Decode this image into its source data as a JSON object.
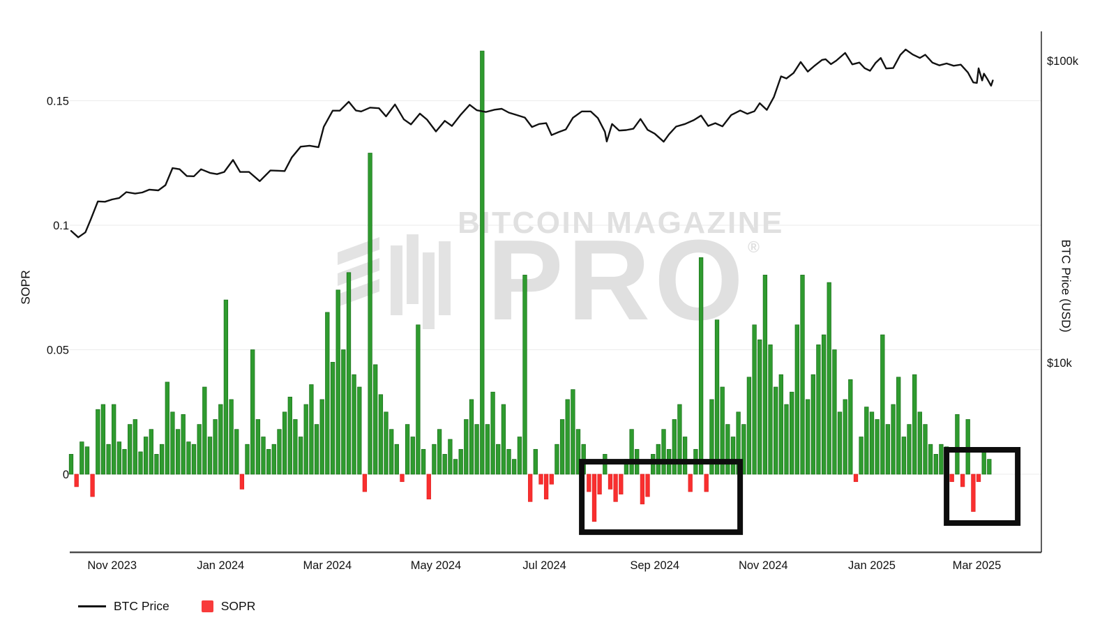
{
  "watermark": {
    "brand_line": "BITCOIN MAGAZINE",
    "brand_word": "PRO",
    "registered_mark": "®",
    "color": "#e2e2e2"
  },
  "legend": {
    "items": [
      {
        "label": "BTC Price",
        "marker": "line",
        "color": "#111111"
      },
      {
        "label": "SOPR",
        "marker": "square",
        "color": "#f83b3b"
      }
    ]
  },
  "axes": {
    "left": {
      "title": "SOPR",
      "tick_labels": [
        "0",
        "0.05",
        "0.1",
        "0.15"
      ],
      "tick_values": [
        0,
        0.05,
        0.1,
        0.15
      ]
    },
    "right": {
      "title": "BTC Price (USD)",
      "tick_labels": [
        "$10k",
        "$100k"
      ],
      "tick_values_usd": [
        10000,
        100000
      ],
      "scale": "log"
    },
    "x": {
      "tick_labels": [
        "Nov 2023",
        "Jan 2024",
        "Mar 2024",
        "May 2024",
        "Jul 2024",
        "Sep 2024",
        "Nov 2024",
        "Jan 2025",
        "Mar 2025"
      ],
      "tick_dates": [
        "2023-11-01",
        "2024-01-01",
        "2024-03-01",
        "2024-05-01",
        "2024-07-01",
        "2024-09-01",
        "2024-11-01",
        "2025-01-01",
        "2025-03-01"
      ]
    }
  },
  "chart_data": {
    "type": "mixed",
    "layout": {
      "grid": "horizontal-only",
      "legend_position": "bottom-left",
      "left_axis_range_sopr": [
        -0.031,
        0.178
      ],
      "right_axis_range_usd": [
        2350,
        125000
      ],
      "x_range_dates": [
        "2023-10-08",
        "2025-04-06"
      ]
    },
    "series": [
      {
        "name": "BTC Price",
        "type": "line",
        "axis": "right",
        "color": "#111111",
        "scale": "log",
        "dates": [
          "2023-10-09",
          "2023-10-13",
          "2023-10-17",
          "2023-10-20",
          "2023-10-24",
          "2023-10-28",
          "2023-11-01",
          "2023-11-05",
          "2023-11-09",
          "2023-11-14",
          "2023-11-18",
          "2023-11-22",
          "2023-11-27",
          "2023-12-01",
          "2023-12-05",
          "2023-12-09",
          "2023-12-13",
          "2023-12-17",
          "2023-12-21",
          "2023-12-26",
          "2023-12-30",
          "2024-01-03",
          "2024-01-08",
          "2024-01-12",
          "2024-01-17",
          "2024-01-23",
          "2024-01-29",
          "2024-02-02",
          "2024-02-06",
          "2024-02-10",
          "2024-02-15",
          "2024-02-20",
          "2024-02-25",
          "2024-02-28",
          "2024-03-04",
          "2024-03-08",
          "2024-03-13",
          "2024-03-17",
          "2024-03-20",
          "2024-03-25",
          "2024-03-30",
          "2024-04-03",
          "2024-04-08",
          "2024-04-13",
          "2024-04-17",
          "2024-04-22",
          "2024-04-26",
          "2024-05-01",
          "2024-05-06",
          "2024-05-10",
          "2024-05-15",
          "2024-05-20",
          "2024-05-24",
          "2024-05-29",
          "2024-06-03",
          "2024-06-07",
          "2024-06-11",
          "2024-06-15",
          "2024-06-20",
          "2024-06-24",
          "2024-06-28",
          "2024-07-02",
          "2024-07-05",
          "2024-07-09",
          "2024-07-13",
          "2024-07-17",
          "2024-07-22",
          "2024-07-27",
          "2024-07-31",
          "2024-08-04",
          "2024-08-05",
          "2024-08-08",
          "2024-08-12",
          "2024-08-16",
          "2024-08-20",
          "2024-08-24",
          "2024-08-28",
          "2024-09-01",
          "2024-09-06",
          "2024-09-09",
          "2024-09-13",
          "2024-09-18",
          "2024-09-23",
          "2024-09-27",
          "2024-10-01",
          "2024-10-05",
          "2024-10-09",
          "2024-10-14",
          "2024-10-19",
          "2024-10-23",
          "2024-10-27",
          "2024-10-30",
          "2024-11-03",
          "2024-11-07",
          "2024-11-11",
          "2024-11-14",
          "2024-11-18",
          "2024-11-22",
          "2024-11-26",
          "2024-11-30",
          "2024-12-04",
          "2024-12-06",
          "2024-12-09",
          "2024-12-12",
          "2024-12-17",
          "2024-12-21",
          "2024-12-25",
          "2024-12-28",
          "2024-12-31",
          "2025-01-03",
          "2025-01-06",
          "2025-01-09",
          "2025-01-13",
          "2025-01-17",
          "2025-01-20",
          "2025-01-24",
          "2025-01-28",
          "2025-01-31",
          "2025-02-04",
          "2025-02-08",
          "2025-02-12",
          "2025-02-16",
          "2025-02-20",
          "2025-02-24",
          "2025-02-27",
          "2025-03-01",
          "2025-03-02",
          "2025-03-04",
          "2025-03-05",
          "2025-03-07",
          "2025-03-09",
          "2025-03-10"
        ],
        "values_usd_thousands": [
          27.3,
          26.0,
          27.0,
          29.8,
          34.2,
          34.1,
          34.7,
          35.1,
          36.7,
          36.3,
          36.6,
          37.4,
          37.2,
          38.7,
          44.1,
          43.7,
          41.5,
          41.4,
          43.7,
          42.5,
          42.1,
          42.8,
          46.9,
          42.8,
          42.8,
          39.9,
          43.3,
          43.2,
          43.1,
          47.8,
          51.9,
          52.3,
          51.7,
          60.4,
          68.3,
          68.3,
          73.1,
          68.4,
          67.9,
          69.9,
          69.6,
          65.4,
          71.6,
          63.9,
          61.5,
          66.8,
          63.8,
          58.3,
          63.2,
          60.8,
          66.3,
          71.4,
          68.5,
          67.6,
          68.8,
          69.3,
          67.3,
          66.2,
          64.8,
          60.3,
          61.7,
          62.1,
          56.7,
          58.0,
          59.2,
          64.7,
          67.9,
          67.9,
          64.6,
          58.1,
          54.0,
          61.7,
          58.7,
          58.9,
          59.5,
          64.1,
          59.0,
          57.3,
          53.9,
          57.0,
          60.5,
          61.7,
          63.6,
          65.8,
          60.8,
          62.1,
          60.6,
          66.1,
          68.4,
          66.7,
          68.0,
          72.3,
          68.7,
          75.9,
          88.7,
          87.3,
          91.0,
          99.0,
          92.0,
          96.4,
          100.6,
          101.1,
          97.4,
          100.0,
          106.1,
          97.2,
          98.6,
          94.4,
          92.6,
          98.2,
          102.1,
          94.2,
          94.5,
          104.5,
          108.9,
          104.8,
          102.1,
          104.6,
          98.6,
          96.5,
          97.9,
          96.2,
          97.0,
          91.4,
          84.7,
          84.4,
          94.3,
          86.0,
          90.6,
          86.7,
          82.6,
          86.0
        ]
      },
      {
        "name": "SOPR",
        "type": "bar",
        "axis": "left",
        "positive_color": "#2f9b2f",
        "negative_color": "#f92f2f",
        "start_date": "2023-10-09",
        "step_days": 3,
        "values": [
          0.008,
          -0.005,
          0.013,
          0.011,
          -0.009,
          0.026,
          0.028,
          0.012,
          0.028,
          0.013,
          0.01,
          0.02,
          0.022,
          0.009,
          0.015,
          0.018,
          0.008,
          0.012,
          0.037,
          0.025,
          0.018,
          0.024,
          0.013,
          0.012,
          0.02,
          0.035,
          0.015,
          0.022,
          0.028,
          0.07,
          0.03,
          0.018,
          -0.006,
          0.012,
          0.05,
          0.022,
          0.015,
          0.01,
          0.012,
          0.018,
          0.025,
          0.031,
          0.022,
          0.015,
          0.028,
          0.036,
          0.02,
          0.03,
          0.065,
          0.045,
          0.074,
          0.05,
          0.081,
          0.04,
          0.035,
          -0.007,
          0.129,
          0.044,
          0.032,
          0.025,
          0.018,
          0.012,
          -0.003,
          0.02,
          0.015,
          0.06,
          0.01,
          -0.01,
          0.012,
          0.018,
          0.008,
          0.014,
          0.006,
          0.01,
          0.022,
          0.03,
          0.02,
          0.17,
          0.02,
          0.033,
          0.012,
          0.028,
          0.01,
          0.006,
          0.015,
          0.08,
          -0.011,
          0.01,
          -0.004,
          -0.01,
          -0.004,
          0.012,
          0.022,
          0.03,
          0.034,
          0.018,
          0.012,
          -0.007,
          -0.019,
          -0.008,
          0.008,
          -0.006,
          -0.011,
          -0.008,
          0.006,
          0.018,
          0.01,
          -0.012,
          -0.009,
          0.008,
          0.012,
          0.018,
          0.01,
          0.022,
          0.028,
          0.015,
          -0.007,
          0.01,
          0.087,
          -0.007,
          0.03,
          0.062,
          0.035,
          0.02,
          0.015,
          0.025,
          0.02,
          0.039,
          0.06,
          0.054,
          0.08,
          0.052,
          0.035,
          0.04,
          0.028,
          0.033,
          0.06,
          0.08,
          0.03,
          0.04,
          0.052,
          0.056,
          0.077,
          0.05,
          0.025,
          0.03,
          0.038,
          -0.003,
          0.015,
          0.027,
          0.025,
          0.022,
          0.056,
          0.02,
          0.028,
          0.039,
          0.015,
          0.02,
          0.04,
          0.025,
          0.02,
          0.012,
          0.008,
          0.012,
          0.011,
          -0.003,
          0.024,
          -0.005,
          0.022,
          -0.015,
          -0.003,
          0.01,
          0.006
        ]
      }
    ],
    "annotations": [
      {
        "shape": "rect",
        "color": "#0d0d0d",
        "x0_date": "2024-07-22",
        "x1_date": "2024-10-19",
        "y0_sopr": -0.0233,
        "y1_sopr": 0.005
      },
      {
        "shape": "rect",
        "color": "#0d0d0d",
        "x0_date": "2025-02-12",
        "x1_date": "2025-03-24",
        "y0_sopr": -0.0196,
        "y1_sopr": 0.0098
      }
    ]
  }
}
